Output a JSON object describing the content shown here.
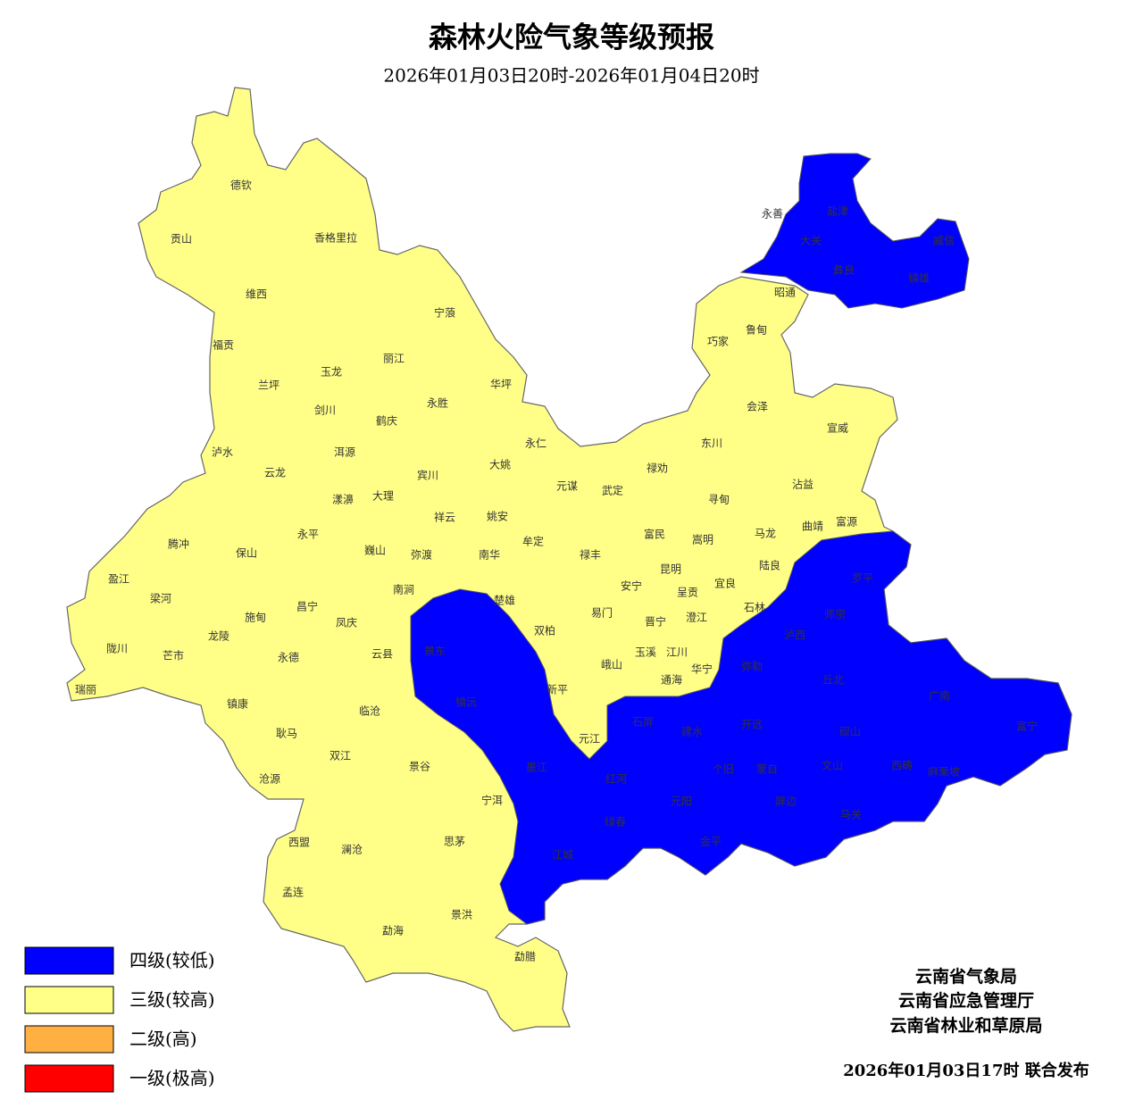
{
  "title": "森林火险气象等级预报",
  "subtitle": "2026年01月03日20时-2026年01月04日20时",
  "legend": [
    {
      "label": "四级(较低)",
      "color": "#0000ff"
    },
    {
      "label": "三级(较高)",
      "color": "#ffff88"
    },
    {
      "label": "二级(高)",
      "color": "#ffb040"
    },
    {
      "label": "一级(极高)",
      "color": "#ff0000"
    }
  ],
  "issuers": [
    "云南省气象局",
    "云南省应急管理厅",
    "云南省林业和草原局"
  ],
  "release": "2026年01月03日17时  联合发布",
  "places": [
    "德钦",
    "贡山",
    "香格里拉",
    "维西",
    "福贡",
    "兰坪",
    "玉龙",
    "丽江",
    "宁蒗",
    "华坪",
    "永胜",
    "剑川",
    "鹤庆",
    "洱源",
    "泸水",
    "云龙",
    "永仁",
    "大姚",
    "宾川",
    "漾濞",
    "大理",
    "祥云",
    "姚安",
    "元谋",
    "武定",
    "禄劝",
    "东川",
    "会泽",
    "宣威",
    "昭通",
    "鲁甸",
    "巧家",
    "寻甸",
    "沾益",
    "富源",
    "马龙",
    "曲靖",
    "腾冲",
    "盈江",
    "梁河",
    "陇川",
    "瑞丽",
    "芒市",
    "龙陵",
    "施甸",
    "保山",
    "永平",
    "昌宁",
    "巍山",
    "弥渡",
    "南涧",
    "南华",
    "牟定",
    "禄丰",
    "富民",
    "嵩明",
    "昆明",
    "安宁",
    "呈贡",
    "宜良",
    "陆良",
    "石林",
    "易门",
    "晋宁",
    "澄江",
    "楚雄",
    "双柏",
    "峨山",
    "玉溪",
    "江川",
    "华宁",
    "通海",
    "凤庆",
    "云县",
    "永德",
    "镇康",
    "临沧",
    "耿马",
    "双江",
    "沧源",
    "景谷",
    "新平",
    "元江",
    "宁洱",
    "思茅",
    "西盟",
    "澜沧",
    "孟连",
    "景洪",
    "勐海",
    "勐腊",
    "盐津",
    "永善",
    "大关",
    "威信",
    "彝良",
    "镇雄",
    "罗平",
    "师宗",
    "泸西",
    "弥勒",
    "丘北",
    "广南",
    "富宁",
    "石屏",
    "建水",
    "开远",
    "砚山",
    "文山",
    "蒙自",
    "个旧",
    "墨江",
    "红河",
    "西畴",
    "麻栗坡",
    "屏边",
    "元阳",
    "马关",
    "绿春",
    "金平",
    "江城",
    "景东",
    "镇沅"
  ]
}
